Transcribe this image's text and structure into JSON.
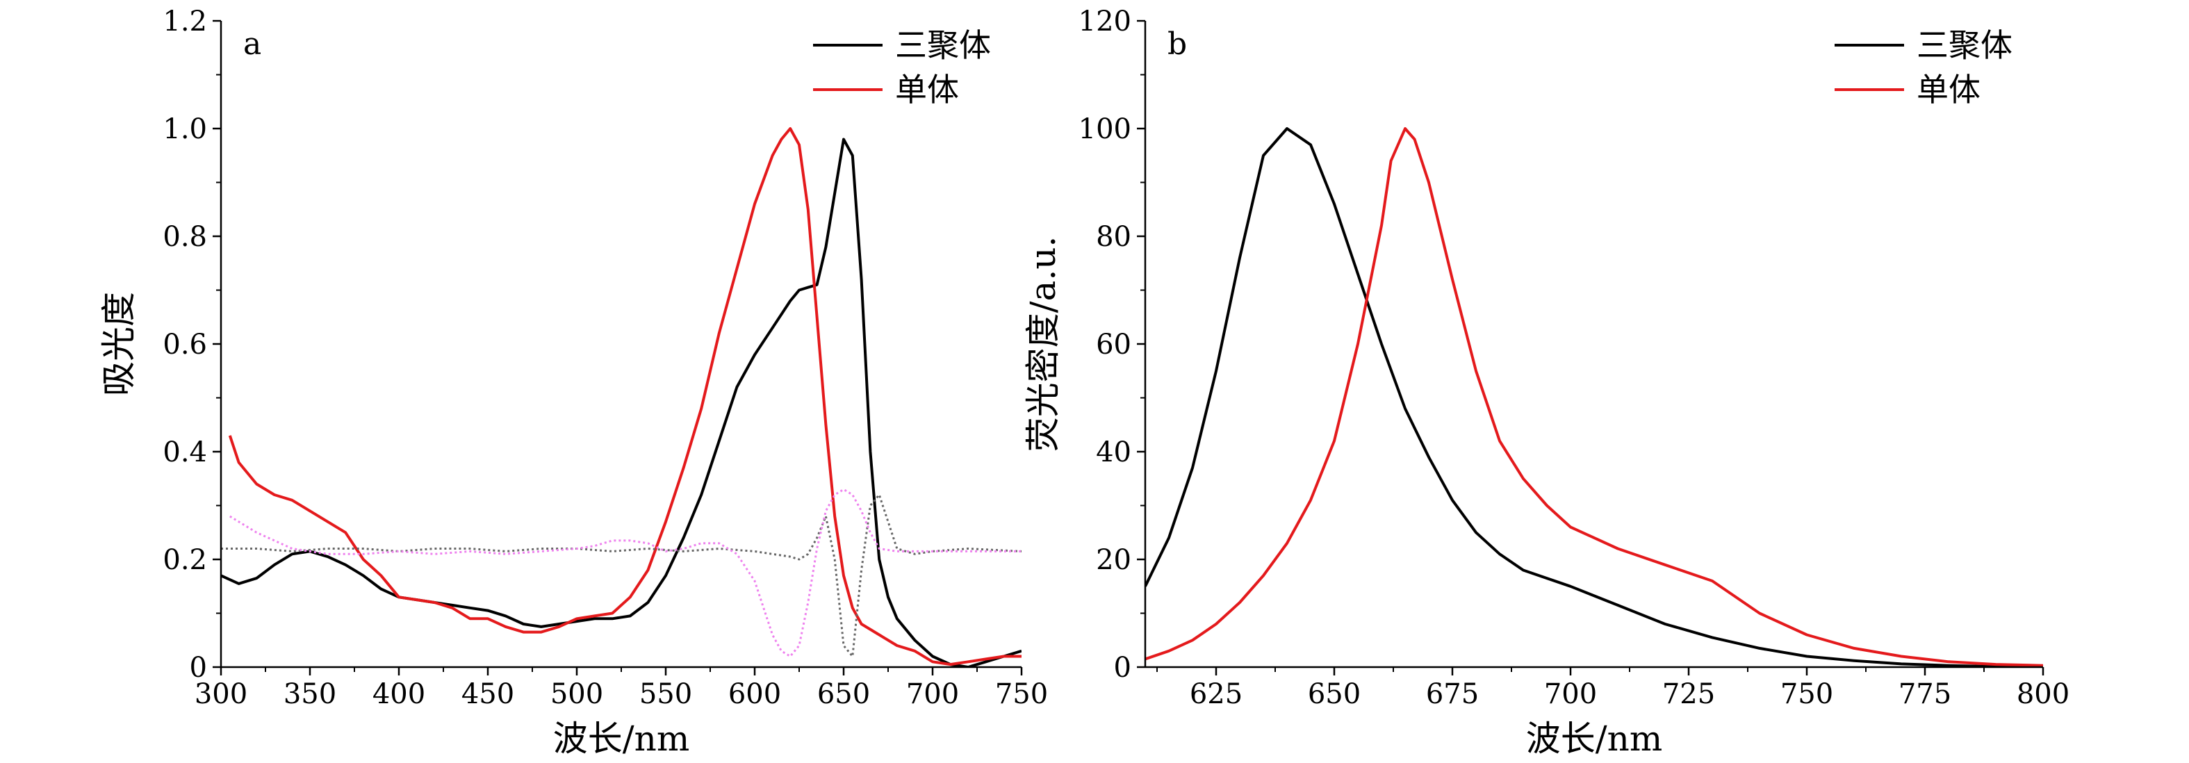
{
  "chart_data": [
    {
      "type": "line",
      "panel_label": "a",
      "xlabel": "波长/nm",
      "ylabel": "吸光度",
      "xlim": [
        300,
        750
      ],
      "ylim": [
        0,
        1.2
      ],
      "xticks": [
        300,
        350,
        400,
        450,
        500,
        550,
        600,
        650,
        700,
        750
      ],
      "yticks": [
        0,
        0.2,
        0.4,
        0.6,
        0.8,
        1.0,
        1.2
      ],
      "ytick_labels": [
        "0",
        "0.2",
        "0.4",
        "0.6",
        "0.8",
        "1.0",
        "1.2"
      ],
      "legend_position": "top-right",
      "legend": [
        {
          "label": "三聚体",
          "color": "#000000"
        },
        {
          "label": "单体",
          "color": "#e41a1c"
        }
      ],
      "series": [
        {
          "name": "三聚体",
          "color": "#000000",
          "style": "solid",
          "x": [
            300,
            310,
            320,
            330,
            340,
            350,
            360,
            370,
            380,
            390,
            400,
            410,
            420,
            430,
            440,
            450,
            460,
            470,
            480,
            490,
            500,
            510,
            520,
            530,
            540,
            550,
            560,
            570,
            580,
            590,
            600,
            610,
            620,
            625,
            630,
            635,
            640,
            645,
            650,
            655,
            660,
            665,
            670,
            675,
            680,
            690,
            700,
            710,
            720,
            730,
            740,
            750
          ],
          "y": [
            0.17,
            0.155,
            0.165,
            0.19,
            0.21,
            0.215,
            0.205,
            0.19,
            0.17,
            0.145,
            0.13,
            0.125,
            0.12,
            0.115,
            0.11,
            0.105,
            0.095,
            0.08,
            0.075,
            0.08,
            0.085,
            0.09,
            0.09,
            0.095,
            0.12,
            0.17,
            0.24,
            0.32,
            0.42,
            0.52,
            0.58,
            0.63,
            0.68,
            0.7,
            0.705,
            0.71,
            0.78,
            0.88,
            0.98,
            0.95,
            0.72,
            0.4,
            0.2,
            0.13,
            0.09,
            0.05,
            0.02,
            0.005,
            0.0,
            0.01,
            0.02,
            0.03
          ]
        },
        {
          "name": "单体",
          "color": "#e41a1c",
          "style": "solid",
          "x": [
            305,
            310,
            320,
            330,
            340,
            350,
            360,
            370,
            380,
            390,
            400,
            410,
            420,
            430,
            440,
            450,
            460,
            470,
            480,
            490,
            500,
            510,
            520,
            530,
            540,
            550,
            560,
            570,
            580,
            590,
            600,
            610,
            615,
            620,
            625,
            630,
            635,
            640,
            645,
            650,
            655,
            660,
            670,
            680,
            690,
            700,
            710,
            720,
            730,
            740,
            750
          ],
          "y": [
            0.43,
            0.38,
            0.34,
            0.32,
            0.31,
            0.29,
            0.27,
            0.25,
            0.2,
            0.17,
            0.13,
            0.125,
            0.12,
            0.11,
            0.09,
            0.09,
            0.075,
            0.065,
            0.065,
            0.075,
            0.09,
            0.095,
            0.1,
            0.13,
            0.18,
            0.27,
            0.37,
            0.48,
            0.62,
            0.74,
            0.86,
            0.95,
            0.98,
            1.0,
            0.97,
            0.85,
            0.65,
            0.45,
            0.28,
            0.17,
            0.11,
            0.08,
            0.06,
            0.04,
            0.03,
            0.01,
            0.005,
            0.01,
            0.015,
            0.02,
            0.02
          ]
        },
        {
          "color": "#666666",
          "style": "dotted",
          "x": [
            300,
            320,
            340,
            360,
            380,
            400,
            420,
            440,
            460,
            480,
            500,
            520,
            540,
            560,
            580,
            600,
            610,
            620,
            625,
            630,
            635,
            640,
            645,
            650,
            655,
            660,
            665,
            670,
            675,
            680,
            690,
            700,
            720,
            750
          ],
          "y": [
            0.22,
            0.22,
            0.215,
            0.22,
            0.22,
            0.215,
            0.22,
            0.22,
            0.215,
            0.22,
            0.22,
            0.215,
            0.22,
            0.215,
            0.22,
            0.215,
            0.21,
            0.205,
            0.2,
            0.21,
            0.24,
            0.28,
            0.2,
            0.04,
            0.02,
            0.18,
            0.3,
            0.32,
            0.27,
            0.22,
            0.21,
            0.215,
            0.22,
            0.215
          ]
        },
        {
          "color": "#ee82ee",
          "style": "dotted",
          "x": [
            305,
            320,
            340,
            360,
            380,
            400,
            420,
            440,
            460,
            480,
            500,
            510,
            520,
            530,
            540,
            550,
            560,
            570,
            580,
            590,
            600,
            605,
            610,
            615,
            620,
            625,
            630,
            635,
            640,
            645,
            650,
            655,
            660,
            665,
            670,
            680,
            700,
            720,
            750
          ],
          "y": [
            0.28,
            0.25,
            0.22,
            0.21,
            0.21,
            0.215,
            0.21,
            0.215,
            0.21,
            0.215,
            0.22,
            0.225,
            0.235,
            0.235,
            0.23,
            0.215,
            0.22,
            0.23,
            0.23,
            0.21,
            0.16,
            0.11,
            0.06,
            0.03,
            0.02,
            0.04,
            0.12,
            0.22,
            0.29,
            0.32,
            0.33,
            0.32,
            0.29,
            0.25,
            0.22,
            0.215,
            0.215,
            0.215,
            0.215
          ]
        }
      ]
    },
    {
      "type": "line",
      "panel_label": "b",
      "xlabel": "波长/nm",
      "ylabel": "荧光密度/a.u.",
      "xlim": [
        610,
        800
      ],
      "ylim": [
        0,
        120
      ],
      "xticks": [
        625,
        650,
        675,
        700,
        725,
        750,
        775,
        800
      ],
      "yticks": [
        0,
        20,
        40,
        60,
        80,
        100,
        120
      ],
      "ytick_labels": [
        "0",
        "20",
        "40",
        "60",
        "80",
        "100",
        "120"
      ],
      "legend_position": "top-right",
      "legend": [
        {
          "label": "三聚体",
          "color": "#000000"
        },
        {
          "label": "单体",
          "color": "#e41a1c"
        }
      ],
      "series": [
        {
          "name": "三聚体",
          "color": "#000000",
          "style": "solid",
          "x": [
            610,
            615,
            620,
            625,
            630,
            635,
            640,
            645,
            650,
            655,
            660,
            665,
            670,
            675,
            680,
            685,
            690,
            700,
            710,
            720,
            730,
            740,
            750,
            760,
            770,
            780,
            790,
            800
          ],
          "y": [
            15,
            24,
            37,
            55,
            76,
            95,
            100,
            97,
            86,
            73,
            60,
            48,
            39,
            31,
            25,
            21,
            18,
            15,
            11.5,
            8,
            5.5,
            3.5,
            2,
            1.2,
            0.6,
            0.3,
            0.1,
            0.05
          ]
        },
        {
          "name": "单体",
          "color": "#e41a1c",
          "style": "solid",
          "x": [
            610,
            615,
            620,
            625,
            630,
            635,
            640,
            645,
            650,
            655,
            660,
            662,
            665,
            667,
            670,
            675,
            680,
            685,
            690,
            695,
            700,
            710,
            720,
            730,
            740,
            750,
            760,
            770,
            780,
            790,
            800
          ],
          "y": [
            1.5,
            3,
            5,
            8,
            12,
            17,
            23,
            31,
            42,
            60,
            82,
            94,
            100,
            98,
            90,
            72,
            55,
            42,
            35,
            30,
            26,
            22,
            19,
            16,
            10,
            6,
            3.5,
            2,
            1,
            0.5,
            0.3
          ]
        }
      ]
    }
  ]
}
